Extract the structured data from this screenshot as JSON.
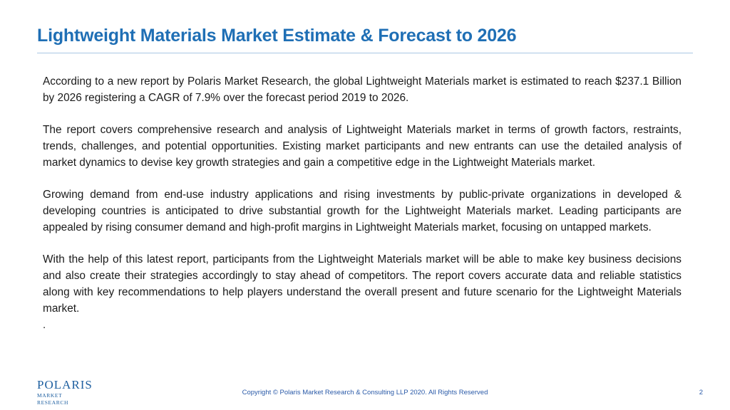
{
  "slide": {
    "title": "Lightweight Materials Market Estimate & Forecast to 2026",
    "paragraphs": [
      "According to a new report by Polaris Market Research, the global Lightweight Materials market is estimated to reach $237.1 Billion by 2026 registering a CAGR of 7.9% over the forecast period 2019 to 2026.",
      "The report covers comprehensive research and analysis of Lightweight Materials market in terms of growth factors, restraints, trends, challenges, and potential opportunities. Existing market participants and new entrants can use the detailed analysis of market dynamics to devise key growth strategies and gain a competitive edge in the Lightweight Materials market.",
      "Growing demand from end-use industry applications and rising investments by public-private organizations in developed & developing countries is anticipated to drive substantial growth for the Lightweight Materials market. Leading participants are appealed by rising consumer demand and high-profit margins in Lightweight Materials market, focusing on untapped markets.",
      "With the help of this latest report, participants from the Lightweight Materials market will be able to make key business decisions and also create their strategies accordingly to stay ahead of competitors. The report covers accurate data and reliable statistics along with key recommendations to help players understand the overall present and future scenario for the Lightweight Materials market."
    ],
    "trailing_mark": "."
  },
  "footer": {
    "logo_name": "POLARIS",
    "logo_sub": "MARKET RESEARCH",
    "copyright": "Copyright © Polaris Market Research & Consulting LLP 2020. All Rights Reserved",
    "page_number": "2"
  },
  "colors": {
    "title": "#1f6fb5",
    "rule": "#a9c6e3",
    "body_text": "#1a1a1a",
    "footer_text": "#2a5aa8",
    "logo": "#1e5fa0"
  }
}
